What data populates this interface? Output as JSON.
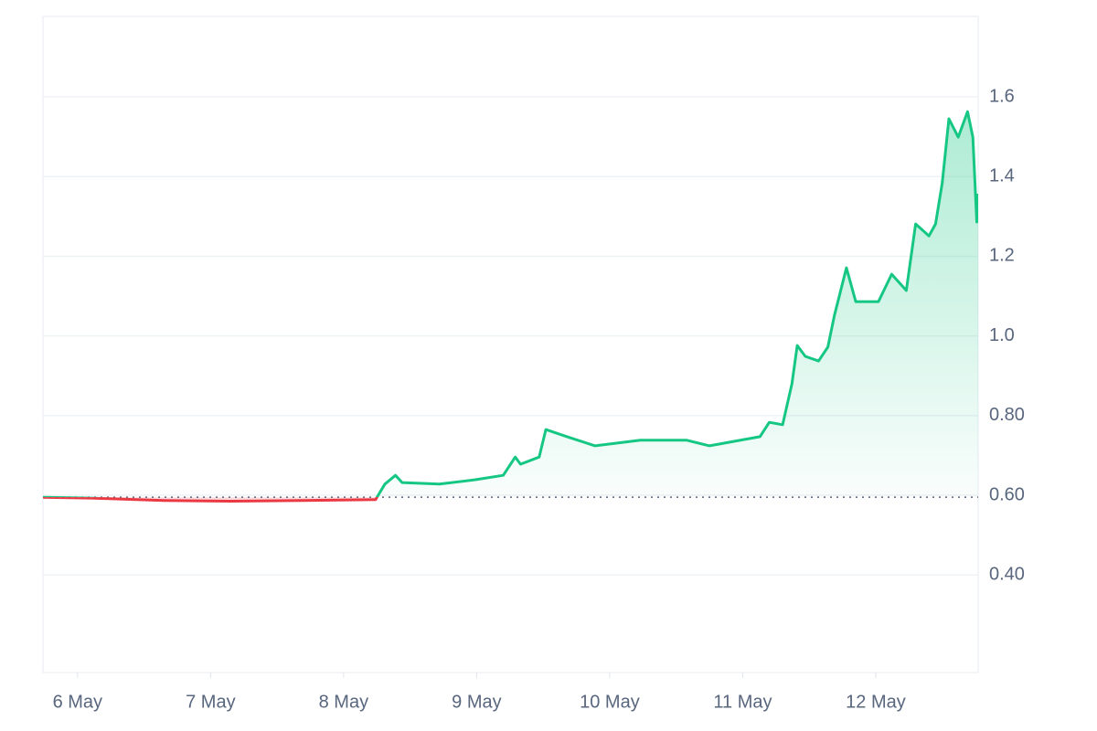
{
  "chart_data": {
    "type": "line",
    "x": [
      5.74,
      6.1,
      6.65,
      7.14,
      7.69,
      8.24,
      8.31,
      8.39,
      8.44,
      8.72,
      8.99,
      9.2,
      9.29,
      9.33,
      9.47,
      9.52,
      9.68,
      9.89,
      10.23,
      10.58,
      10.75,
      11.13,
      11.2,
      11.3,
      11.37,
      11.41,
      11.47,
      11.57,
      11.64,
      11.69,
      11.78,
      11.85,
      12.02,
      12.12,
      12.23,
      12.3,
      12.4,
      12.45,
      12.5,
      12.55,
      12.62,
      12.69,
      12.73,
      12.76,
      12.77
    ],
    "values": [
      0.595,
      0.593,
      0.587,
      0.585,
      0.587,
      0.589,
      0.628,
      0.65,
      0.632,
      0.628,
      0.639,
      0.65,
      0.696,
      0.678,
      0.696,
      0.765,
      0.747,
      0.724,
      0.738,
      0.738,
      0.724,
      0.747,
      0.783,
      0.777,
      0.88,
      0.976,
      0.949,
      0.937,
      0.972,
      1.052,
      1.171,
      1.086,
      1.086,
      1.155,
      1.114,
      1.281,
      1.251,
      1.281,
      1.384,
      1.545,
      1.499,
      1.563,
      1.499,
      1.286,
      1.357
    ],
    "baseline": 0.595,
    "color_up": "#16c784",
    "color_down": "#ea3943",
    "xlim": [
      5.74,
      12.77
    ],
    "xticks": [
      {
        "value": 6,
        "label": "6 May"
      },
      {
        "value": 7,
        "label": "7 May"
      },
      {
        "value": 8,
        "label": "8 May"
      },
      {
        "value": 9,
        "label": "9 May"
      },
      {
        "value": 10,
        "label": "10 May"
      },
      {
        "value": 11,
        "label": "11 May"
      },
      {
        "value": 12,
        "label": "12 May"
      }
    ],
    "ylim": [
      0.155,
      1.802
    ],
    "yticks": [
      {
        "value": 0.4,
        "label": "0.40"
      },
      {
        "value": 0.6,
        "label": "0.60"
      },
      {
        "value": 0.8,
        "label": "0.80"
      },
      {
        "value": 1.0,
        "label": "1.0"
      },
      1.2,
      1.4,
      1.6
    ],
    "grid": true
  }
}
